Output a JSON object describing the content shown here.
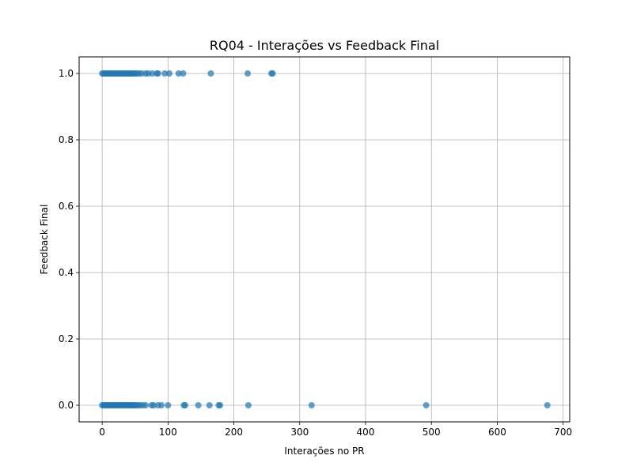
{
  "chart_data": {
    "type": "scatter",
    "title": "RQ04 - Interações vs Feedback Final",
    "xlabel": "Interações no PR",
    "ylabel": "Feedback Final",
    "xlim": [
      -35,
      710
    ],
    "ylim": [
      -0.05,
      1.05
    ],
    "x_ticks": [
      0,
      100,
      200,
      300,
      400,
      500,
      600,
      700
    ],
    "x_tick_labels": [
      "0",
      "100",
      "200",
      "300",
      "400",
      "500",
      "600",
      "700"
    ],
    "y_ticks": [
      0.0,
      0.2,
      0.4,
      0.6,
      0.8,
      1.0
    ],
    "y_tick_labels": [
      "0.0",
      "0.2",
      "0.4",
      "0.6",
      "0.8",
      "1.0"
    ],
    "grid": true,
    "point_color": "#1f77b4",
    "series": [
      {
        "points": [
          {
            "x": 0,
            "y": 1
          },
          {
            "x": 2,
            "y": 1
          },
          {
            "x": 4,
            "y": 1
          },
          {
            "x": 6,
            "y": 1
          },
          {
            "x": 8,
            "y": 1
          },
          {
            "x": 10,
            "y": 1
          },
          {
            "x": 12,
            "y": 1
          },
          {
            "x": 14,
            "y": 1
          },
          {
            "x": 16,
            "y": 1
          },
          {
            "x": 18,
            "y": 1
          },
          {
            "x": 20,
            "y": 1
          },
          {
            "x": 22,
            "y": 1
          },
          {
            "x": 24,
            "y": 1
          },
          {
            "x": 26,
            "y": 1
          },
          {
            "x": 28,
            "y": 1
          },
          {
            "x": 30,
            "y": 1
          },
          {
            "x": 32,
            "y": 1
          },
          {
            "x": 34,
            "y": 1
          },
          {
            "x": 36,
            "y": 1
          },
          {
            "x": 38,
            "y": 1
          },
          {
            "x": 40,
            "y": 1
          },
          {
            "x": 42,
            "y": 1
          },
          {
            "x": 44,
            "y": 1
          },
          {
            "x": 46,
            "y": 1
          },
          {
            "x": 48,
            "y": 1
          },
          {
            "x": 50,
            "y": 1
          },
          {
            "x": 53,
            "y": 1
          },
          {
            "x": 56,
            "y": 1
          },
          {
            "x": 60,
            "y": 1
          },
          {
            "x": 66,
            "y": 1
          },
          {
            "x": 70,
            "y": 1
          },
          {
            "x": 76,
            "y": 1
          },
          {
            "x": 83,
            "y": 1
          },
          {
            "x": 85,
            "y": 1
          },
          {
            "x": 95,
            "y": 1
          },
          {
            "x": 102,
            "y": 1
          },
          {
            "x": 116,
            "y": 1
          },
          {
            "x": 123,
            "y": 1
          },
          {
            "x": 165,
            "y": 1
          },
          {
            "x": 221,
            "y": 1
          },
          {
            "x": 257,
            "y": 1
          },
          {
            "x": 259,
            "y": 1
          },
          {
            "x": 0,
            "y": 0
          },
          {
            "x": 2,
            "y": 0
          },
          {
            "x": 4,
            "y": 0
          },
          {
            "x": 6,
            "y": 0
          },
          {
            "x": 8,
            "y": 0
          },
          {
            "x": 10,
            "y": 0
          },
          {
            "x": 12,
            "y": 0
          },
          {
            "x": 14,
            "y": 0
          },
          {
            "x": 16,
            "y": 0
          },
          {
            "x": 18,
            "y": 0
          },
          {
            "x": 20,
            "y": 0
          },
          {
            "x": 22,
            "y": 0
          },
          {
            "x": 24,
            "y": 0
          },
          {
            "x": 26,
            "y": 0
          },
          {
            "x": 28,
            "y": 0
          },
          {
            "x": 30,
            "y": 0
          },
          {
            "x": 32,
            "y": 0
          },
          {
            "x": 34,
            "y": 0
          },
          {
            "x": 36,
            "y": 0
          },
          {
            "x": 38,
            "y": 0
          },
          {
            "x": 40,
            "y": 0
          },
          {
            "x": 42,
            "y": 0
          },
          {
            "x": 44,
            "y": 0
          },
          {
            "x": 46,
            "y": 0
          },
          {
            "x": 48,
            "y": 0
          },
          {
            "x": 50,
            "y": 0
          },
          {
            "x": 52,
            "y": 0
          },
          {
            "x": 55,
            "y": 0
          },
          {
            "x": 58,
            "y": 0
          },
          {
            "x": 62,
            "y": 0
          },
          {
            "x": 66,
            "y": 0
          },
          {
            "x": 75,
            "y": 0
          },
          {
            "x": 78,
            "y": 0
          },
          {
            "x": 85,
            "y": 0
          },
          {
            "x": 90,
            "y": 0
          },
          {
            "x": 100,
            "y": 0
          },
          {
            "x": 124,
            "y": 0
          },
          {
            "x": 126,
            "y": 0
          },
          {
            "x": 146,
            "y": 0
          },
          {
            "x": 163,
            "y": 0
          },
          {
            "x": 177,
            "y": 0
          },
          {
            "x": 179,
            "y": 0
          },
          {
            "x": 222,
            "y": 0
          },
          {
            "x": 318,
            "y": 0
          },
          {
            "x": 492,
            "y": 0
          },
          {
            "x": 676,
            "y": 0
          }
        ]
      }
    ]
  }
}
